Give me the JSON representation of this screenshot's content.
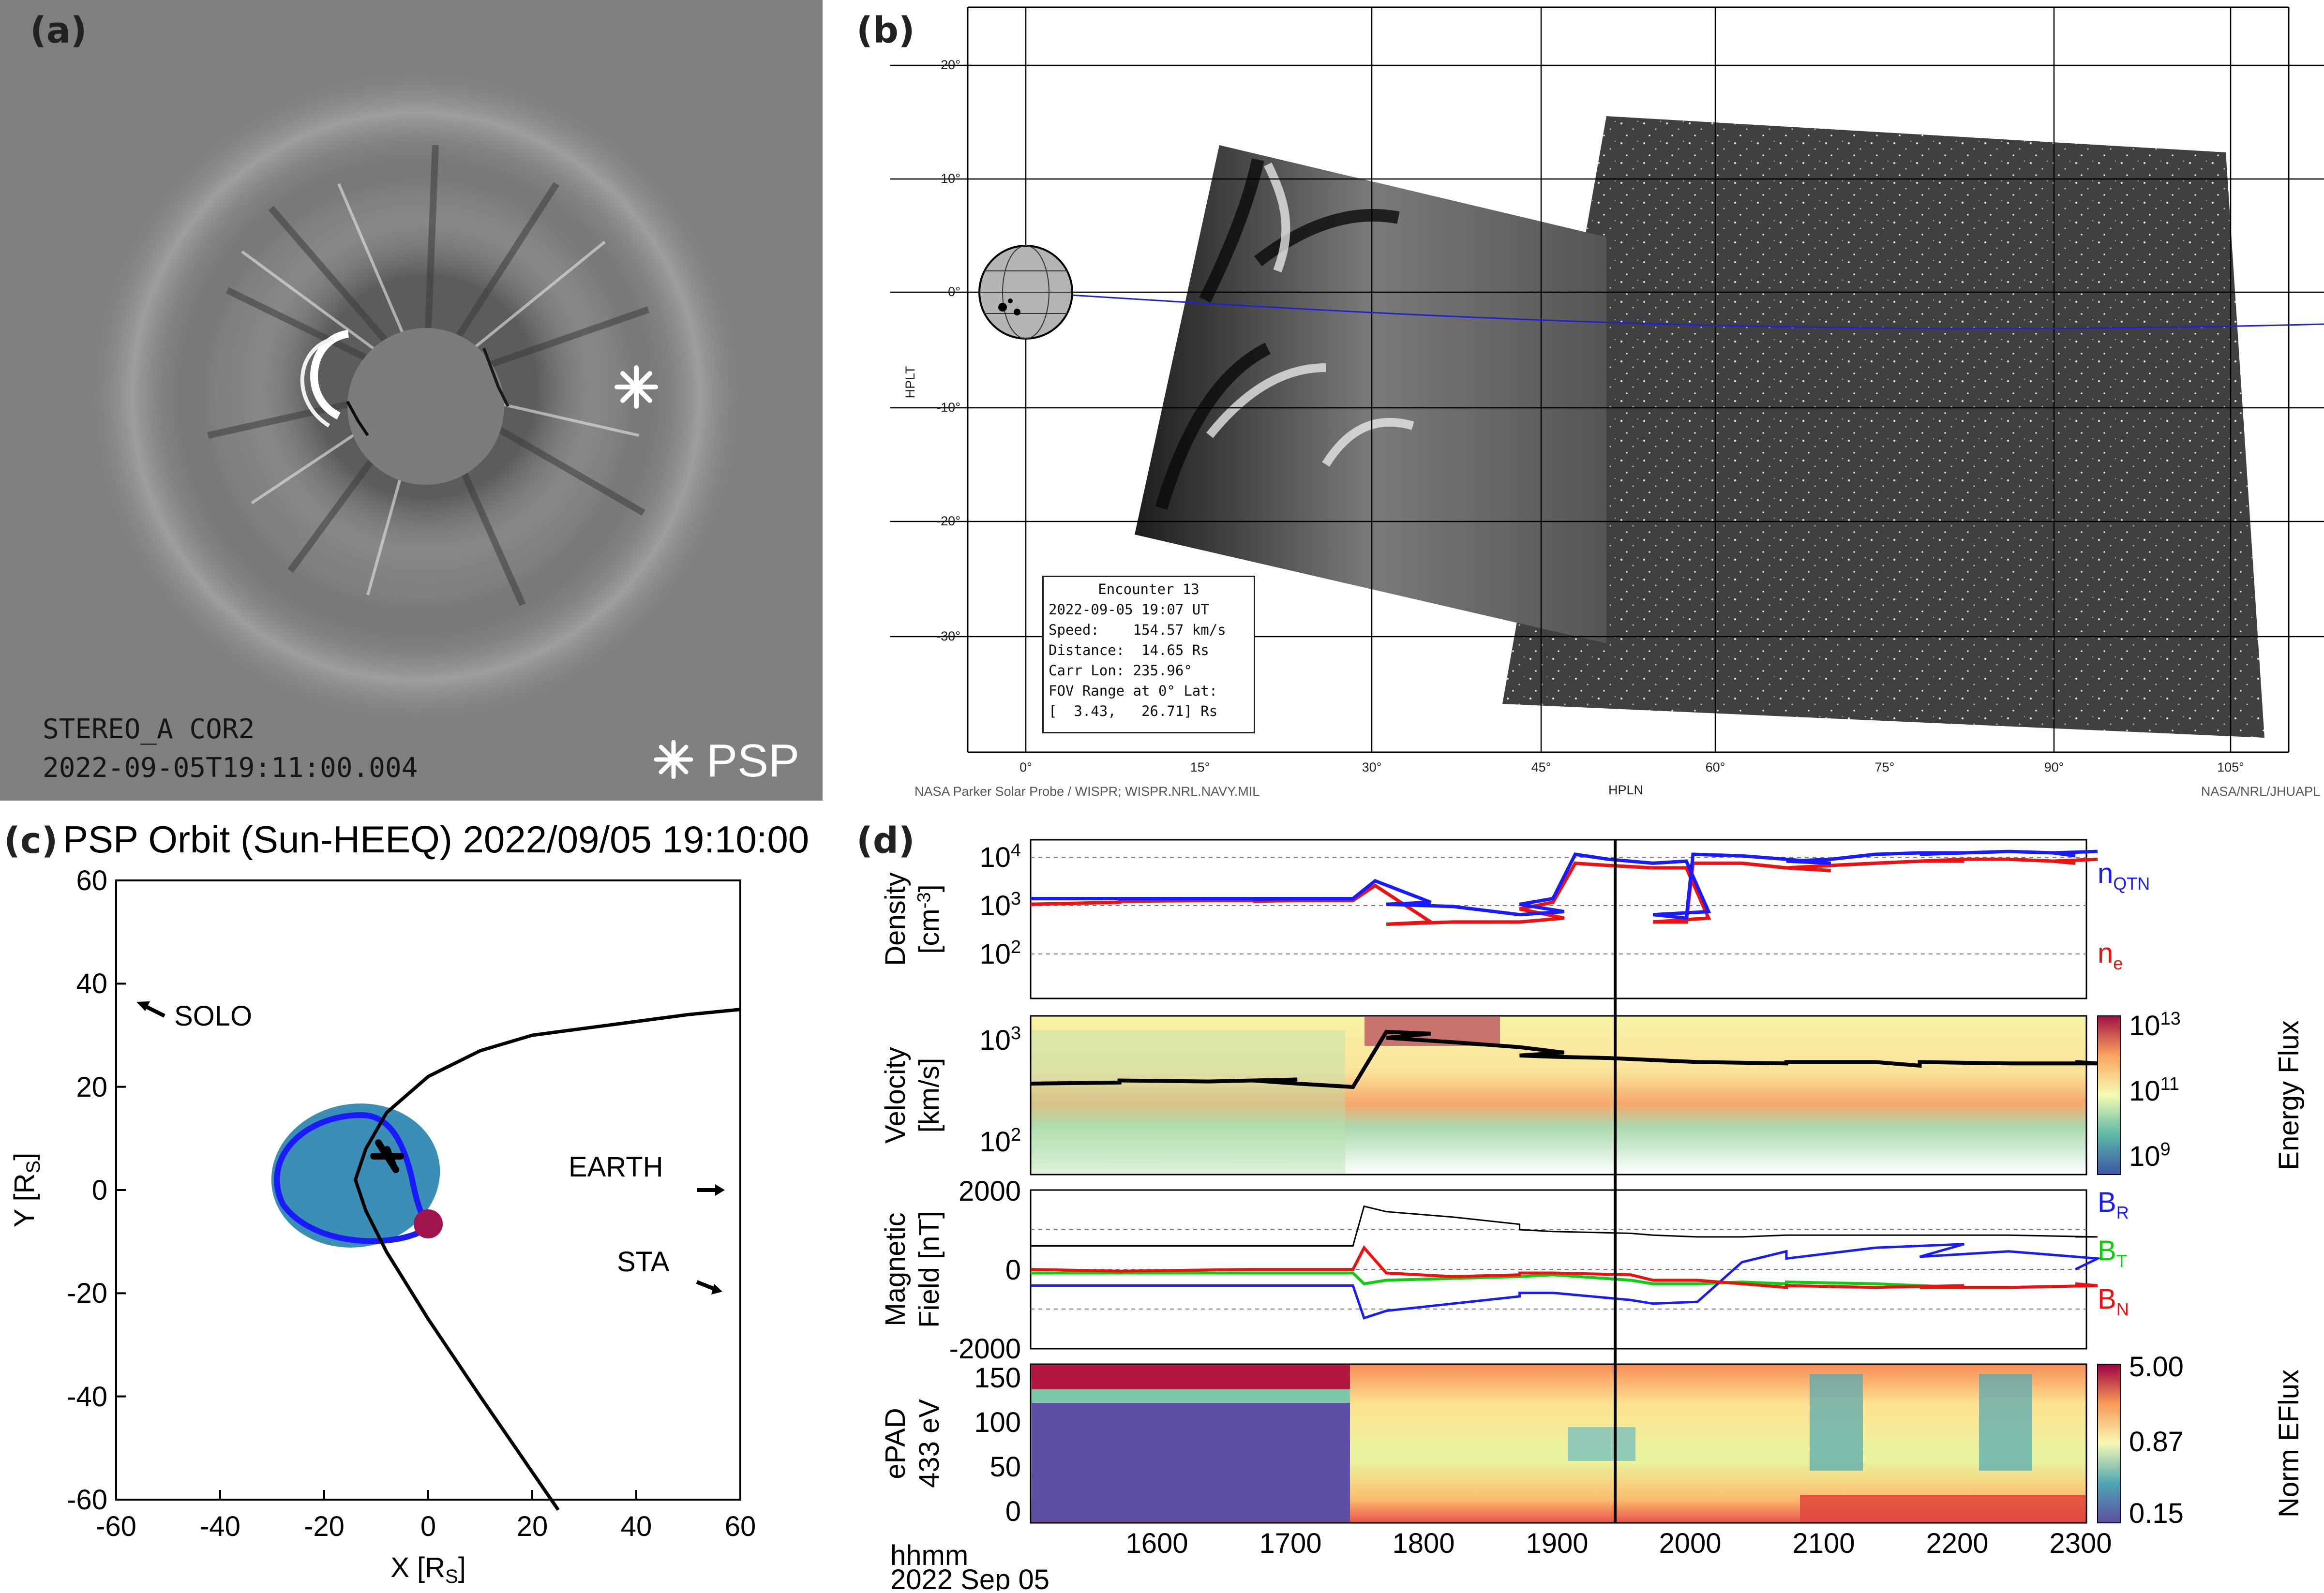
{
  "panel_a": {
    "label": "(a)",
    "instrument_caption": "STEREO_A COR2",
    "timestamp_caption": "2022-09-05T19:11:00.004",
    "marker_label": "PSP"
  },
  "panel_b": {
    "label": "(b)",
    "y_axis_label": "HPLT",
    "x_axis_label": "HPLN",
    "y_ticks": [
      "20°",
      "10°",
      "0°",
      "-10°",
      "-20°",
      "-30°"
    ],
    "x_ticks": [
      "0°",
      "15°",
      "30°",
      "45°",
      "60°",
      "75°",
      "90°",
      "105°"
    ],
    "info_box": {
      "line1": "Encounter 13",
      "line2": "2022-09-05 19:07 UT",
      "line3": "Speed:    154.57 km/s",
      "line4": "Distance:  14.65 Rs",
      "line5": "Carr Lon: 235.96°",
      "line6": "FOV Range at 0° Lat:",
      "line7": "[  3.43,   26.71] Rs"
    },
    "credit_left": "NASA Parker Solar Probe / WISPR; WISPR.NRL.NAVY.MIL",
    "credit_right": "NASA/NRL/JHUAPL"
  },
  "panel_c": {
    "label": "(c)",
    "title": "PSP Orbit (Sun-HEEQ) 2022/09/05 19:10:00",
    "xlabel_main": "X [R",
    "xlabel_sub": "S",
    "xlabel_end": "]",
    "ylabel_main": "Y [R",
    "ylabel_sub": "S",
    "ylabel_end": "]",
    "x_ticks": [
      "-60",
      "-40",
      "-20",
      "0",
      "20",
      "40",
      "60"
    ],
    "y_ticks": [
      "60",
      "40",
      "20",
      "0",
      "-20",
      "-40",
      "-60"
    ],
    "annotations": {
      "solo": "SOLO",
      "earth": "EARTH",
      "sta": "STA"
    }
  },
  "panel_d": {
    "label": "(d)",
    "density_ylabel_1": "Density",
    "density_ylabel_2": "[cm",
    "density_ylabel_sup": "-3",
    "density_ylabel_end": "]",
    "velocity_ylabel_1": "Velocity",
    "velocity_ylabel_2": "[km/s]",
    "mag_ylabel_1": "Magnetic",
    "mag_ylabel_2": "Field [nT]",
    "epad_ylabel_1": "ePAD",
    "epad_ylabel_2": "433 eV",
    "density_ticks": {
      "base": "10",
      "exps": [
        "4",
        "3",
        "2"
      ]
    },
    "velocity_ticks": {
      "base": "10",
      "exps": [
        "3",
        "2"
      ]
    },
    "mag_ticks": [
      "2000",
      "0",
      "-2000"
    ],
    "epad_ticks": [
      "150",
      "100",
      "50",
      "0"
    ],
    "legend_density": {
      "nqtn_main": "n",
      "nqtn_sub": "QTN",
      "ne_main": "n",
      "ne_sub": "e"
    },
    "legend_mag": {
      "br_main": "B",
      "br_sub": "R",
      "bt_main": "B",
      "bt_sub": "T",
      "bn_main": "B",
      "bn_sub": "N"
    },
    "colorbar_energy": {
      "label": "Energy Flux",
      "base": "10",
      "exps": [
        "13",
        "11",
        "9"
      ]
    },
    "colorbar_norm": {
      "label": "Norm EFlux",
      "ticks": [
        "5.00",
        "0.87",
        "0.15"
      ]
    },
    "time_ticks": [
      "1600",
      "1700",
      "1800",
      "1900",
      "2000",
      "2100",
      "2200",
      "2300"
    ],
    "time_caption_1": "hhmm",
    "time_caption_2": "2022 Sep 05"
  },
  "colors": {
    "blue": "#1a1aff",
    "red": "#ee1111",
    "green": "#11cc11",
    "orbit_disk": "#3b8fb7",
    "sun": "#a0144e"
  },
  "chart_data": [
    {
      "type": "line",
      "panel": "c",
      "title": "PSP Orbit (Sun-HEEQ) 2022/09/05 19:10:00",
      "xlabel": "X [RS]",
      "ylabel": "Y [RS]",
      "xlim": [
        -60,
        60
      ],
      "ylim": [
        -60,
        60
      ],
      "series": [
        {
          "x": [
            25,
            10,
            0,
            -8,
            -12,
            -14,
            -12,
            -8,
            0,
            10,
            20,
            35,
            50,
            60
          ],
          "y": [
            -62,
            -40,
            -25,
            -12,
            -4,
            2,
            8,
            15,
            22,
            27,
            30,
            32,
            34,
            35
          ]
        }
      ],
      "labels": [
        {
          "name": "SOLO",
          "x": -55,
          "y": 33
        },
        {
          "name": "EARTH",
          "x": 55,
          "y": 0
        },
        {
          "name": "STA",
          "x": 55,
          "y": -20
        }
      ]
    },
    {
      "type": "line",
      "panel": "d-density",
      "ylabel": "Density [cm-3]",
      "yscale": "log",
      "ylim": [
        30,
        15000
      ],
      "x": [
        1520,
        1560,
        1600,
        1640,
        1680,
        1700,
        1720,
        1745,
        1755,
        1780,
        1800,
        1830,
        1860,
        1880,
        1900,
        1915,
        1925,
        1940,
        1960,
        1975,
        1985,
        2000,
        2015,
        2018,
        2040,
        2060,
        2080,
        2100,
        2120,
        2140,
        2160,
        2180,
        2200,
        2220,
        2240,
        2260,
        2280,
        2300,
        2310
      ],
      "series": [
        {
          "name": "nQTN",
          "values": [
            1500,
            1500,
            1500,
            1500,
            1500,
            1450,
            1500,
            1500,
            3000,
            1300,
            1200,
            1100,
            800,
            900,
            1200,
            1500,
            8500,
            7000,
            6000,
            6500,
            900,
            800,
            700,
            8500,
            8000,
            7000,
            6000,
            6500,
            7000,
            8500,
            9000,
            9000,
            8500,
            9000,
            9500,
            9000,
            9500,
            9000,
            8000
          ]
        },
        {
          "name": "ne",
          "values": [
            1200,
            1300,
            1350,
            1400,
            1400,
            1350,
            1400,
            1400,
            2500,
            600,
            550,
            600,
            600,
            700,
            1000,
            1300,
            6000,
            5500,
            5000,
            5000,
            700,
            600,
            600,
            6000,
            6000,
            5000,
            4500,
            5000,
            5500,
            6000,
            6500,
            6500,
            6500,
            7000,
            7000,
            6500,
            7000,
            6500,
            6000
          ]
        }
      ]
    },
    {
      "type": "line",
      "panel": "d-velocity",
      "ylabel": "Velocity [km/s]",
      "yscale": "log",
      "ylim": [
        70,
        1800
      ],
      "x": [
        1520,
        1560,
        1600,
        1640,
        1680,
        1700,
        1720,
        1745,
        1760,
        1780,
        1800,
        1830,
        1860,
        1880,
        1900,
        1915,
        1940,
        1980,
        2020,
        2060,
        2100,
        2140,
        2160,
        2200,
        2240,
        2280,
        2310
      ],
      "series": [
        {
          "name": "speed",
          "values": [
            450,
            460,
            480,
            470,
            490,
            480,
            450,
            420,
            1300,
            1250,
            1150,
            1050,
            950,
            850,
            800,
            780,
            760,
            700,
            700,
            680,
            700,
            700,
            650,
            700,
            680,
            680,
            700
          ]
        }
      ]
    },
    {
      "type": "line",
      "panel": "d-magnetic",
      "ylabel": "Magnetic Field [nT]",
      "ylim": [
        -2200,
        2200
      ],
      "x": [
        1520,
        1600,
        1700,
        1745,
        1750,
        1800,
        1830,
        1860,
        1900,
        1915,
        1950,
        2000,
        2020,
        2040,
        2060,
        2100,
        2140,
        2180,
        2200,
        2240,
        2280,
        2310
      ],
      "series": [
        {
          "name": "|B|",
          "values": [
            650,
            650,
            650,
            650,
            1750,
            1600,
            1450,
            1250,
            1100,
            1050,
            1000,
            950,
            900,
            900,
            950,
            950,
            950,
            950,
            950,
            950,
            900,
            900
          ]
        },
        {
          "name": "BR",
          "values": [
            -450,
            -450,
            -450,
            -450,
            -1350,
            -1150,
            -950,
            -750,
            -650,
            -650,
            -850,
            -950,
            -900,
            200,
            500,
            300,
            600,
            700,
            350,
            500,
            300,
            0
          ]
        },
        {
          "name": "BT",
          "values": [
            -100,
            -100,
            -100,
            -100,
            -400,
            -300,
            -250,
            -200,
            -200,
            -150,
            -300,
            -400,
            -400,
            -350,
            -400,
            -350,
            -400,
            -500,
            -500,
            -500,
            -450,
            -450
          ]
        },
        {
          "name": "BN",
          "values": [
            0,
            -50,
            0,
            0,
            600,
            -100,
            -200,
            -150,
            -100,
            -100,
            -150,
            -300,
            -300,
            -400,
            -500,
            -450,
            -500,
            -450,
            -500,
            -500,
            -450,
            -400
          ]
        }
      ]
    },
    {
      "type": "heatmap",
      "panel": "d-epad",
      "ylabel": "ePAD 433 eV",
      "ylim": [
        0,
        180
      ],
      "colorbar": {
        "label": "Norm EFlux",
        "ticks": [
          0.15,
          0.87,
          5.0
        ]
      },
      "xlim": [
        1520,
        2315
      ]
    }
  ]
}
